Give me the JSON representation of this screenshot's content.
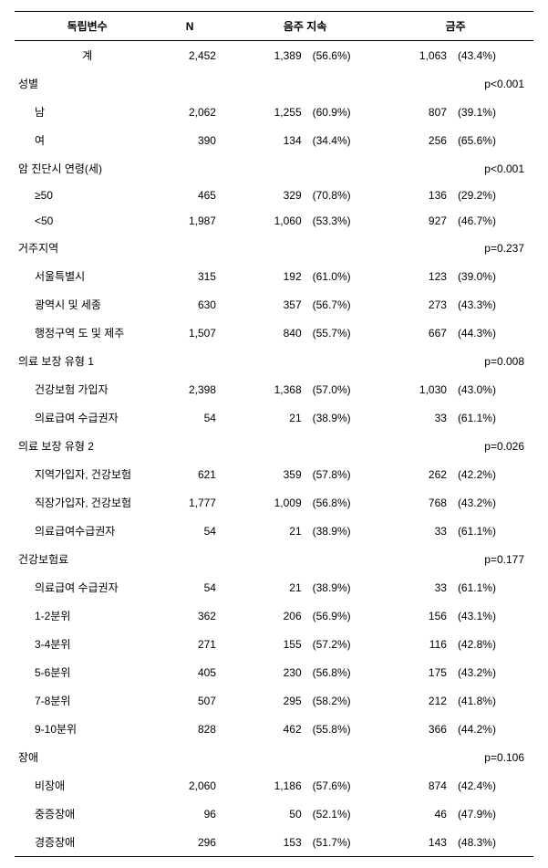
{
  "table": {
    "headers": {
      "var": "독립변수",
      "n": "N",
      "cont": "음주 지속",
      "quit": "금주"
    },
    "rows": [
      {
        "type": "data",
        "level": 0,
        "label": "계",
        "n": "2,452",
        "c1n": "1,389",
        "c1p": "(56.6%)",
        "c2n": "1,063",
        "c2p": "(43.4%)"
      },
      {
        "type": "section",
        "level": 1,
        "label": "성별",
        "pval": "p<0.001"
      },
      {
        "type": "data",
        "level": 2,
        "label": "남",
        "n": "2,062",
        "c1n": "1,255",
        "c1p": "(60.9%)",
        "c2n": "807",
        "c2p": "(39.1%)"
      },
      {
        "type": "data",
        "level": 2,
        "label": "여",
        "n": "390",
        "c1n": "134",
        "c1p": "(34.4%)",
        "c2n": "256",
        "c2p": "(65.6%)"
      },
      {
        "type": "section",
        "level": 1,
        "label": "암 진단시 연령(세)",
        "pval": "p<0.001"
      },
      {
        "type": "data",
        "level": 2,
        "label": "≥50",
        "n": "465",
        "c1n": "329",
        "c1p": "(70.8%)",
        "c2n": "136",
        "c2p": "(29.2%)"
      },
      {
        "type": "data",
        "level": 2,
        "label": "<50",
        "n": "1,987",
        "c1n": "1,060",
        "c1p": "(53.3%)",
        "c2n": "927",
        "c2p": "(46.7%)"
      },
      {
        "type": "section",
        "level": 1,
        "label": "거주지역",
        "pval": "p=0.237"
      },
      {
        "type": "data",
        "level": 2,
        "label": "서울특별시",
        "n": "315",
        "c1n": "192",
        "c1p": "(61.0%)",
        "c2n": "123",
        "c2p": "(39.0%)"
      },
      {
        "type": "data",
        "level": 2,
        "label": "광역시 및 세종",
        "n": "630",
        "c1n": "357",
        "c1p": "(56.7%)",
        "c2n": "273",
        "c2p": "(43.3%)"
      },
      {
        "type": "data",
        "level": 2,
        "label": "행정구역 도 및 제주",
        "n": "1,507",
        "c1n": "840",
        "c1p": "(55.7%)",
        "c2n": "667",
        "c2p": "(44.3%)"
      },
      {
        "type": "section",
        "level": 1,
        "label": "의료 보장 유형 1",
        "pval": "p=0.008"
      },
      {
        "type": "data",
        "level": 2,
        "label": "건강보험 가입자",
        "n": "2,398",
        "c1n": "1,368",
        "c1p": "(57.0%)",
        "c2n": "1,030",
        "c2p": "(43.0%)"
      },
      {
        "type": "data",
        "level": 2,
        "label": "의료급여 수급권자",
        "n": "54",
        "c1n": "21",
        "c1p": "(38.9%)",
        "c2n": "33",
        "c2p": "(61.1%)"
      },
      {
        "type": "section",
        "level": 1,
        "label": "의료 보장 유형 2",
        "pval": "p=0.026"
      },
      {
        "type": "data",
        "level": 2,
        "label": "지역가입자, 건강보험",
        "n": "621",
        "c1n": "359",
        "c1p": "(57.8%)",
        "c2n": "262",
        "c2p": "(42.2%)"
      },
      {
        "type": "data",
        "level": 2,
        "label": "직장가입자, 건강보험",
        "n": "1,777",
        "c1n": "1,009",
        "c1p": "(56.8%)",
        "c2n": "768",
        "c2p": "(43.2%)"
      },
      {
        "type": "data",
        "level": 2,
        "label": "의료급여수급권자",
        "n": "54",
        "c1n": "21",
        "c1p": "(38.9%)",
        "c2n": "33",
        "c2p": "(61.1%)"
      },
      {
        "type": "section",
        "level": 1,
        "label": "건강보험료",
        "pval": "p=0.177"
      },
      {
        "type": "data",
        "level": 2,
        "label": "의료급여 수급권자",
        "n": "54",
        "c1n": "21",
        "c1p": "(38.9%)",
        "c2n": "33",
        "c2p": "(61.1%)"
      },
      {
        "type": "data",
        "level": 2,
        "label": "1-2분위",
        "n": "362",
        "c1n": "206",
        "c1p": "(56.9%)",
        "c2n": "156",
        "c2p": "(43.1%)"
      },
      {
        "type": "data",
        "level": 2,
        "label": "3-4분위",
        "n": "271",
        "c1n": "155",
        "c1p": "(57.2%)",
        "c2n": "116",
        "c2p": "(42.8%)"
      },
      {
        "type": "data",
        "level": 2,
        "label": "5-6분위",
        "n": "405",
        "c1n": "230",
        "c1p": "(56.8%)",
        "c2n": "175",
        "c2p": "(43.2%)"
      },
      {
        "type": "data",
        "level": 2,
        "label": "7-8분위",
        "n": "507",
        "c1n": "295",
        "c1p": "(58.2%)",
        "c2n": "212",
        "c2p": "(41.8%)"
      },
      {
        "type": "data",
        "level": 2,
        "label": "9-10분위",
        "n": "828",
        "c1n": "462",
        "c1p": "(55.8%)",
        "c2n": "366",
        "c2p": "(44.2%)"
      },
      {
        "type": "section",
        "level": 1,
        "label": "장애",
        "pval": "p=0.106"
      },
      {
        "type": "data",
        "level": 2,
        "label": "비장애",
        "n": "2,060",
        "c1n": "1,186",
        "c1p": "(57.6%)",
        "c2n": "874",
        "c2p": "(42.4%)"
      },
      {
        "type": "data",
        "level": 2,
        "label": "중증장애",
        "n": "96",
        "c1n": "50",
        "c1p": "(52.1%)",
        "c2n": "46",
        "c2p": "(47.9%)"
      },
      {
        "type": "data",
        "level": 2,
        "label": "경증장애",
        "n": "296",
        "c1n": "153",
        "c1p": "(51.7%)",
        "c2n": "143",
        "c2p": "(48.3%)",
        "last": true
      }
    ]
  }
}
